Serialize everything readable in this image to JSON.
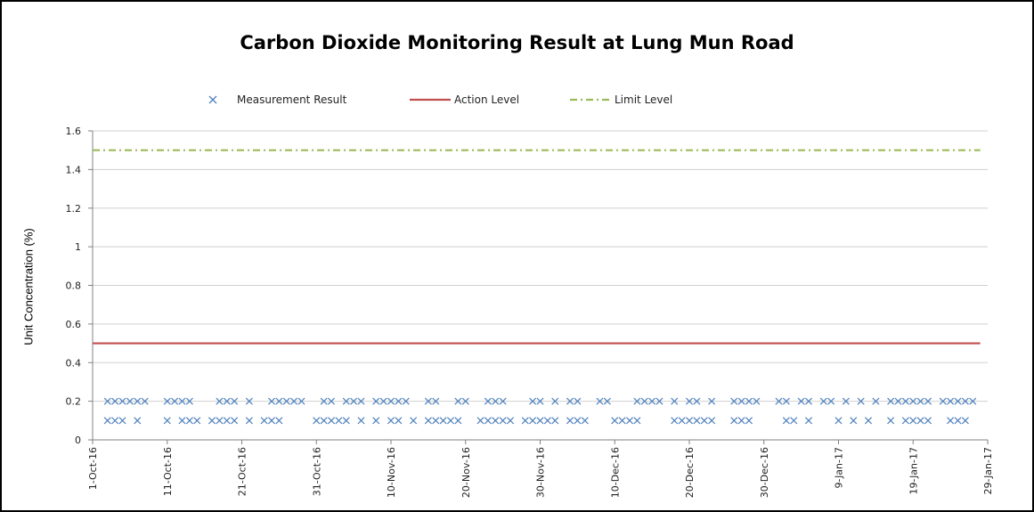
{
  "chart_data": {
    "type": "scatter",
    "title": "Carbon Dioxide Monitoring Result at Lung Mun Road",
    "ylabel": "Unit Concentration (%)",
    "xlabel": "",
    "ylim": [
      0,
      1.6
    ],
    "yticks": [
      "0",
      "0.2",
      "0.4",
      "0.6",
      "0.8",
      "1",
      "1.2",
      "1.4",
      "1.6"
    ],
    "xlim": [
      "2016-10-01",
      "2017-01-29"
    ],
    "xticks": [
      {
        "date": "2016-10-01",
        "label": "1-Oct-16"
      },
      {
        "date": "2016-10-11",
        "label": "11-Oct-16"
      },
      {
        "date": "2016-10-21",
        "label": "21-Oct-16"
      },
      {
        "date": "2016-10-31",
        "label": "31-Oct-16"
      },
      {
        "date": "2016-11-10",
        "label": "10-Nov-16"
      },
      {
        "date": "2016-11-20",
        "label": "20-Nov-16"
      },
      {
        "date": "2016-11-30",
        "label": "30-Nov-16"
      },
      {
        "date": "2016-12-10",
        "label": "10-Dec-16"
      },
      {
        "date": "2016-12-20",
        "label": "20-Dec-16"
      },
      {
        "date": "2016-12-30",
        "label": "30-Dec-16"
      },
      {
        "date": "2017-01-09",
        "label": "9-Jan-17"
      },
      {
        "date": "2017-01-19",
        "label": "19-Jan-17"
      },
      {
        "date": "2017-01-29",
        "label": "29-Jan-17"
      }
    ],
    "grid": true,
    "legend_position": "top",
    "series": [
      {
        "name": "Measurement Result",
        "kind": "scatter",
        "marker": "x",
        "color": "#4f81bd",
        "points": [
          [
            "2016-10-03",
            0.2
          ],
          [
            "2016-10-03",
            0.1
          ],
          [
            "2016-10-04",
            0.2
          ],
          [
            "2016-10-04",
            0.1
          ],
          [
            "2016-10-05",
            0.2
          ],
          [
            "2016-10-05",
            0.1
          ],
          [
            "2016-10-06",
            0.2
          ],
          [
            "2016-10-07",
            0.2
          ],
          [
            "2016-10-07",
            0.1
          ],
          [
            "2016-10-08",
            0.2
          ],
          [
            "2016-10-11",
            0.2
          ],
          [
            "2016-10-11",
            0.1
          ],
          [
            "2016-10-12",
            0.2
          ],
          [
            "2016-10-13",
            0.2
          ],
          [
            "2016-10-13",
            0.1
          ],
          [
            "2016-10-14",
            0.2
          ],
          [
            "2016-10-14",
            0.1
          ],
          [
            "2016-10-15",
            0.1
          ],
          [
            "2016-10-17",
            0.1
          ],
          [
            "2016-10-18",
            0.2
          ],
          [
            "2016-10-18",
            0.1
          ],
          [
            "2016-10-19",
            0.2
          ],
          [
            "2016-10-19",
            0.1
          ],
          [
            "2016-10-20",
            0.2
          ],
          [
            "2016-10-20",
            0.1
          ],
          [
            "2016-10-22",
            0.2
          ],
          [
            "2016-10-22",
            0.1
          ],
          [
            "2016-10-24",
            0.1
          ],
          [
            "2016-10-25",
            0.2
          ],
          [
            "2016-10-25",
            0.1
          ],
          [
            "2016-10-26",
            0.2
          ],
          [
            "2016-10-26",
            0.1
          ],
          [
            "2016-10-27",
            0.2
          ],
          [
            "2016-10-28",
            0.2
          ],
          [
            "2016-10-29",
            0.2
          ],
          [
            "2016-10-31",
            0.1
          ],
          [
            "2016-11-01",
            0.2
          ],
          [
            "2016-11-01",
            0.1
          ],
          [
            "2016-11-02",
            0.2
          ],
          [
            "2016-11-02",
            0.1
          ],
          [
            "2016-11-03",
            0.1
          ],
          [
            "2016-11-04",
            0.2
          ],
          [
            "2016-11-04",
            0.1
          ],
          [
            "2016-11-05",
            0.2
          ],
          [
            "2016-11-06",
            0.2
          ],
          [
            "2016-11-06",
            0.1
          ],
          [
            "2016-11-08",
            0.2
          ],
          [
            "2016-11-08",
            0.1
          ],
          [
            "2016-11-09",
            0.2
          ],
          [
            "2016-11-10",
            0.2
          ],
          [
            "2016-11-10",
            0.1
          ],
          [
            "2016-11-11",
            0.2
          ],
          [
            "2016-11-11",
            0.1
          ],
          [
            "2016-11-12",
            0.2
          ],
          [
            "2016-11-13",
            0.1
          ],
          [
            "2016-11-15",
            0.2
          ],
          [
            "2016-11-15",
            0.1
          ],
          [
            "2016-11-16",
            0.2
          ],
          [
            "2016-11-16",
            0.1
          ],
          [
            "2016-11-17",
            0.1
          ],
          [
            "2016-11-18",
            0.1
          ],
          [
            "2016-11-19",
            0.2
          ],
          [
            "2016-11-19",
            0.1
          ],
          [
            "2016-11-20",
            0.2
          ],
          [
            "2016-11-22",
            0.1
          ],
          [
            "2016-11-23",
            0.2
          ],
          [
            "2016-11-23",
            0.1
          ],
          [
            "2016-11-24",
            0.2
          ],
          [
            "2016-11-24",
            0.1
          ],
          [
            "2016-11-25",
            0.2
          ],
          [
            "2016-11-25",
            0.1
          ],
          [
            "2016-11-26",
            0.1
          ],
          [
            "2016-11-28",
            0.1
          ],
          [
            "2016-11-29",
            0.2
          ],
          [
            "2016-11-29",
            0.1
          ],
          [
            "2016-11-30",
            0.2
          ],
          [
            "2016-11-30",
            0.1
          ],
          [
            "2016-12-01",
            0.1
          ],
          [
            "2016-12-02",
            0.2
          ],
          [
            "2016-12-02",
            0.1
          ],
          [
            "2016-12-04",
            0.2
          ],
          [
            "2016-12-04",
            0.1
          ],
          [
            "2016-12-05",
            0.2
          ],
          [
            "2016-12-05",
            0.1
          ],
          [
            "2016-12-06",
            0.1
          ],
          [
            "2016-12-08",
            0.2
          ],
          [
            "2016-12-09",
            0.2
          ],
          [
            "2016-12-10",
            0.1
          ],
          [
            "2016-12-11",
            0.1
          ],
          [
            "2016-12-12",
            0.1
          ],
          [
            "2016-12-13",
            0.2
          ],
          [
            "2016-12-13",
            0.1
          ],
          [
            "2016-12-14",
            0.2
          ],
          [
            "2016-12-15",
            0.2
          ],
          [
            "2016-12-16",
            0.2
          ],
          [
            "2016-12-18",
            0.2
          ],
          [
            "2016-12-18",
            0.1
          ],
          [
            "2016-12-19",
            0.1
          ],
          [
            "2016-12-20",
            0.2
          ],
          [
            "2016-12-20",
            0.1
          ],
          [
            "2016-12-21",
            0.2
          ],
          [
            "2016-12-21",
            0.1
          ],
          [
            "2016-12-22",
            0.1
          ],
          [
            "2016-12-23",
            0.2
          ],
          [
            "2016-12-23",
            0.1
          ],
          [
            "2016-12-26",
            0.2
          ],
          [
            "2016-12-26",
            0.1
          ],
          [
            "2016-12-27",
            0.2
          ],
          [
            "2016-12-27",
            0.1
          ],
          [
            "2016-12-28",
            0.2
          ],
          [
            "2016-12-28",
            0.1
          ],
          [
            "2016-12-29",
            0.2
          ],
          [
            "2017-01-01",
            0.2
          ],
          [
            "2017-01-02",
            0.2
          ],
          [
            "2017-01-02",
            0.1
          ],
          [
            "2017-01-03",
            0.1
          ],
          [
            "2017-01-04",
            0.2
          ],
          [
            "2017-01-05",
            0.2
          ],
          [
            "2017-01-05",
            0.1
          ],
          [
            "2017-01-07",
            0.2
          ],
          [
            "2017-01-08",
            0.2
          ],
          [
            "2017-01-09",
            0.1
          ],
          [
            "2017-01-10",
            0.2
          ],
          [
            "2017-01-11",
            0.1
          ],
          [
            "2017-01-12",
            0.2
          ],
          [
            "2017-01-13",
            0.1
          ],
          [
            "2017-01-14",
            0.2
          ],
          [
            "2017-01-16",
            0.2
          ],
          [
            "2017-01-16",
            0.1
          ],
          [
            "2017-01-17",
            0.2
          ],
          [
            "2017-01-18",
            0.2
          ],
          [
            "2017-01-18",
            0.1
          ],
          [
            "2017-01-19",
            0.2
          ],
          [
            "2017-01-19",
            0.1
          ],
          [
            "2017-01-20",
            0.2
          ],
          [
            "2017-01-20",
            0.1
          ],
          [
            "2017-01-21",
            0.2
          ],
          [
            "2017-01-21",
            0.1
          ],
          [
            "2017-01-23",
            0.2
          ],
          [
            "2017-01-24",
            0.2
          ],
          [
            "2017-01-24",
            0.1
          ],
          [
            "2017-01-25",
            0.2
          ],
          [
            "2017-01-25",
            0.1
          ],
          [
            "2017-01-26",
            0.2
          ],
          [
            "2017-01-26",
            0.1
          ],
          [
            "2017-01-27",
            0.2
          ]
        ]
      },
      {
        "name": "Action Level",
        "kind": "line",
        "color": "#c0504d",
        "dash": "solid",
        "y": 0.5,
        "x": [
          "2016-10-01",
          "2017-01-28"
        ]
      },
      {
        "name": "Limit Level",
        "kind": "line",
        "color": "#9bbb59",
        "dash": "dash-dot",
        "y": 1.5,
        "x": [
          "2016-10-01",
          "2017-01-28"
        ]
      }
    ]
  }
}
